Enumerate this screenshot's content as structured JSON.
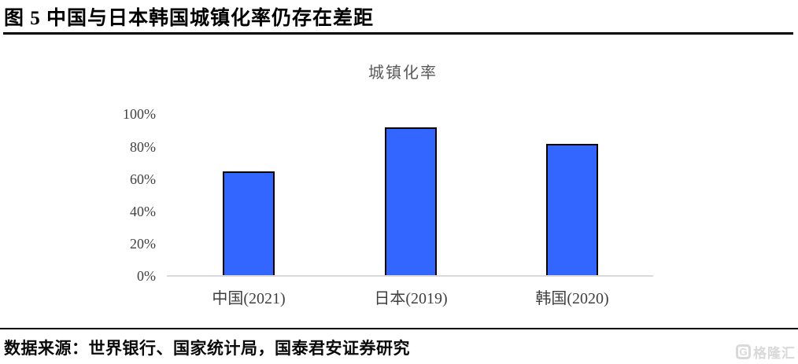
{
  "figure": {
    "title": "图 5 中国与日本韩国城镇化率仍存在差距",
    "source": "数据来源：世界银行、国家统计局，国泰君安证券研究"
  },
  "watermark": {
    "icon": "gelonghui-g-icon",
    "icon_letter": "G",
    "text": "格隆汇"
  },
  "chart_data": {
    "type": "bar",
    "title": "城镇化率",
    "categories": [
      "中国(2021)",
      "日本(2019)",
      "韩国(2020)"
    ],
    "values": [
      65,
      92,
      82
    ],
    "unit": "%",
    "xlabel": "",
    "ylabel": "",
    "ylim": [
      0,
      100
    ],
    "ytick_interval": 20,
    "ytick_labels": [
      "0%",
      "20%",
      "40%",
      "60%",
      "80%",
      "100%"
    ],
    "grid": false,
    "legend_position": "none",
    "bar_color": "#3366fe",
    "bar_border_color": "#000000",
    "title_color": "#595959",
    "axis_line_color": "#d9d9d9"
  }
}
